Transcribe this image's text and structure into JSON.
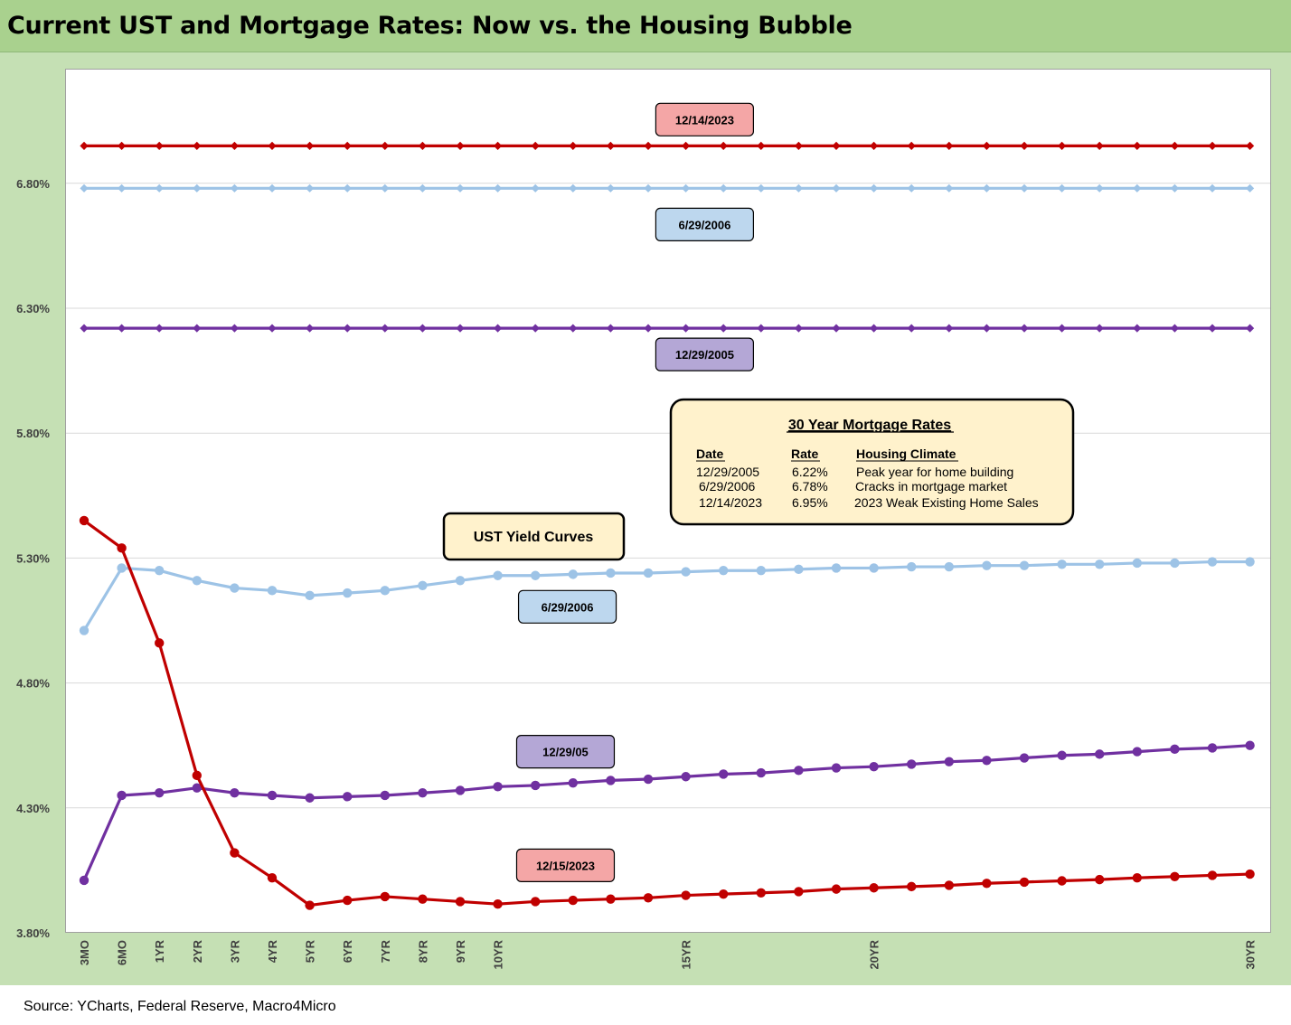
{
  "page": {
    "title": "Current UST and Mortgage Rates: Now vs. the Housing Bubble",
    "source": "Source: YCharts, Federal Reserve, Macro4Micro"
  },
  "chart_data": {
    "type": "line",
    "title": "Current UST and Mortgage Rates: Now vs. the Housing Bubble",
    "xlabel": "",
    "ylabel": "",
    "ylim": [
      3.8,
      7.1
    ],
    "yticks": [
      "3.80%",
      "4.30%",
      "4.80%",
      "5.30%",
      "5.80%",
      "6.30%",
      "6.80%"
    ],
    "ytick_values": [
      3.8,
      4.3,
      4.8,
      5.3,
      5.8,
      6.3,
      6.8
    ],
    "x_positions": [
      "3MO",
      "6MO",
      "1YR",
      "2YR",
      "3YR",
      "4YR",
      "5YR",
      "6YR",
      "7YR",
      "8YR",
      "9YR",
      "10YR",
      "11YR",
      "12YR",
      "13YR",
      "14YR",
      "15YR",
      "16YR",
      "17YR",
      "18YR",
      "19YR",
      "20YR",
      "21YR",
      "22YR",
      "23YR",
      "24YR",
      "25YR",
      "26YR",
      "27YR",
      "28YR",
      "29YR",
      "30YR"
    ],
    "xtick_labels": [
      "3MO",
      "6MO",
      "1YR",
      "2YR",
      "3YR",
      "4YR",
      "5YR",
      "6YR",
      "7YR",
      "8YR",
      "9YR",
      "10YR",
      "",
      "",
      "",
      "",
      "15YR",
      "",
      "",
      "",
      "",
      "20YR",
      "",
      "",
      "",
      "",
      "",
      "",
      "",
      "",
      "",
      "30YR"
    ],
    "grid": "horizontal",
    "series": [
      {
        "name": "12/14/2023",
        "kind": "mortgage",
        "color": "#c00000",
        "marker": "diamond",
        "values": [
          6.95,
          6.95,
          6.95,
          6.95,
          6.95,
          6.95,
          6.95,
          6.95,
          6.95,
          6.95,
          6.95,
          6.95,
          6.95,
          6.95,
          6.95,
          6.95,
          6.95,
          6.95,
          6.95,
          6.95,
          6.95,
          6.95,
          6.95,
          6.95,
          6.95,
          6.95,
          6.95,
          6.95,
          6.95,
          6.95,
          6.95,
          6.95
        ]
      },
      {
        "name": "6/29/2006",
        "kind": "mortgage",
        "color": "#9dc3e6",
        "marker": "diamond",
        "values": [
          6.78,
          6.78,
          6.78,
          6.78,
          6.78,
          6.78,
          6.78,
          6.78,
          6.78,
          6.78,
          6.78,
          6.78,
          6.78,
          6.78,
          6.78,
          6.78,
          6.78,
          6.78,
          6.78,
          6.78,
          6.78,
          6.78,
          6.78,
          6.78,
          6.78,
          6.78,
          6.78,
          6.78,
          6.78,
          6.78,
          6.78,
          6.78
        ]
      },
      {
        "name": "12/29/2005",
        "kind": "mortgage",
        "color": "#7030a0",
        "marker": "diamond",
        "values": [
          6.22,
          6.22,
          6.22,
          6.22,
          6.22,
          6.22,
          6.22,
          6.22,
          6.22,
          6.22,
          6.22,
          6.22,
          6.22,
          6.22,
          6.22,
          6.22,
          6.22,
          6.22,
          6.22,
          6.22,
          6.22,
          6.22,
          6.22,
          6.22,
          6.22,
          6.22,
          6.22,
          6.22,
          6.22,
          6.22,
          6.22,
          6.22
        ]
      },
      {
        "name": "6/29/2006",
        "kind": "ust",
        "color": "#9dc3e6",
        "marker": "circle",
        "values": [
          5.01,
          5.26,
          5.25,
          5.21,
          5.18,
          5.17,
          5.15,
          5.16,
          5.17,
          5.19,
          5.21,
          5.23,
          5.23,
          5.235,
          5.24,
          5.24,
          5.245,
          5.25,
          5.25,
          5.255,
          5.26,
          5.26,
          5.265,
          5.265,
          5.27,
          5.27,
          5.275,
          5.275,
          5.28,
          5.28,
          5.285,
          5.285
        ]
      },
      {
        "name": "12/29/05",
        "kind": "ust",
        "color": "#7030a0",
        "marker": "circle",
        "values": [
          4.01,
          4.35,
          4.36,
          4.38,
          4.36,
          4.35,
          4.34,
          4.345,
          4.35,
          4.36,
          4.37,
          4.385,
          4.39,
          4.4,
          4.41,
          4.415,
          4.425,
          4.435,
          4.44,
          4.45,
          4.46,
          4.465,
          4.475,
          4.485,
          4.49,
          4.5,
          4.51,
          4.515,
          4.525,
          4.535,
          4.54,
          4.55
        ]
      },
      {
        "name": "12/15/2023",
        "kind": "ust",
        "color": "#c00000",
        "marker": "circle",
        "values": [
          5.45,
          5.34,
          4.96,
          4.43,
          4.12,
          4.02,
          3.91,
          3.93,
          3.945,
          3.935,
          3.925,
          3.915,
          3.925,
          3.93,
          3.935,
          3.94,
          3.95,
          3.955,
          3.96,
          3.965,
          3.975,
          3.98,
          3.985,
          3.99,
          3.998,
          4.003,
          4.008,
          4.013,
          4.02,
          4.025,
          4.03,
          4.035
        ]
      }
    ],
    "callouts": [
      {
        "text": "12/14/2023",
        "color": "#f4a6a6",
        "anchor_index": 16.5,
        "value": 7.055
      },
      {
        "text": "6/29/2006",
        "color": "#bdd7ee",
        "anchor_index": 16.5,
        "value": 6.635
      },
      {
        "text": "12/29/2005",
        "color": "#b4a7d6",
        "anchor_index": 16.5,
        "value": 6.115
      },
      {
        "text": "6/29/2006",
        "color": "#bdd7ee",
        "anchor_index": 12.85,
        "value": 5.105
      },
      {
        "text": "12/29/05",
        "color": "#b4a7d6",
        "anchor_index": 12.8,
        "value": 4.525
      },
      {
        "text": "12/15/2023",
        "color": "#f4a6a6",
        "anchor_index": 12.8,
        "value": 4.07
      }
    ],
    "ust_box": {
      "text": "UST Yield Curves"
    },
    "mortgage_table": {
      "title": "30 Year Mortgage Rates",
      "headers": [
        "Date",
        "Rate",
        "Housing Climate"
      ],
      "rows": [
        [
          "12/29/2005",
          "6.22%",
          "Peak year for home building"
        ],
        [
          "6/29/2006",
          "6.78%",
          "Cracks in mortgage market"
        ],
        [
          "12/14/2023",
          "6.95%",
          "2023 Weak Existing Home Sales"
        ]
      ]
    }
  }
}
